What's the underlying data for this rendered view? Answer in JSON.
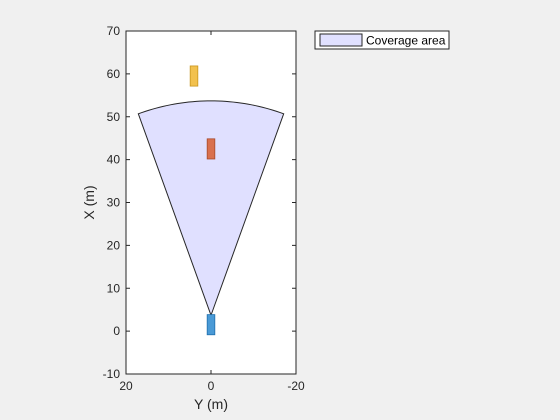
{
  "chart_data": {
    "type": "area",
    "xlabel": "Y (m)",
    "ylabel": "X (m)",
    "xlim": [
      20,
      -20
    ],
    "ylim": [
      -10,
      70
    ],
    "xticks": [
      20,
      0,
      -20
    ],
    "xtick_labels": [
      "20",
      "0",
      "-20"
    ],
    "yticks": [
      -10,
      0,
      10,
      20,
      30,
      40,
      50,
      60,
      70
    ],
    "ytick_labels": [
      "-10",
      "0",
      "10",
      "20",
      "30",
      "40",
      "50",
      "60",
      "70"
    ],
    "grid": false,
    "legend": {
      "position": "top-right-outside",
      "entries": [
        "Coverage area"
      ]
    },
    "coverage_area": {
      "label": "Coverage area",
      "origin": {
        "y": 0,
        "x": 3.7
      },
      "range_m": 50,
      "azimuth_span_deg": 40,
      "fill": "#e0e0ff",
      "edge": "#262626"
    },
    "vehicles": [
      {
        "name": "ego",
        "y_center": 0,
        "x_center": 1.5,
        "length_m": 4.7,
        "width_m": 1.8,
        "color": "#4a9ad6",
        "edge": "#1f6fae"
      },
      {
        "name": "target-1",
        "y_center": 0,
        "x_center": 42.5,
        "length_m": 4.7,
        "width_m": 1.8,
        "color": "#d9704e",
        "edge": "#a84a2a"
      },
      {
        "name": "target-2",
        "y_center": 4,
        "x_center": 59.5,
        "length_m": 4.7,
        "width_m": 1.8,
        "color": "#f2c14e",
        "edge": "#c8951e"
      }
    ]
  }
}
